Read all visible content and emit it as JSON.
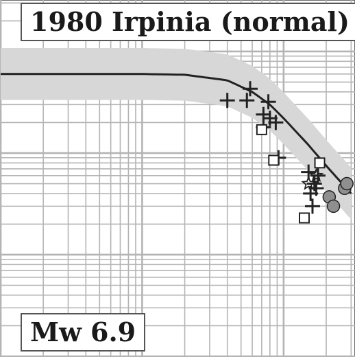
{
  "chart_data": {
    "type": "scatter",
    "title": "1980 Irpinia (normal)",
    "annotation": "Mw 6.9",
    "xscale": "log",
    "yscale": "log",
    "xlim": [
      1,
      316
    ],
    "ylim": [
      0.001,
      3.16
    ],
    "grid": true,
    "tick_labels_shown": false,
    "legend": "none",
    "colors": {
      "grid": "#b4b4b4",
      "band": "#d7d7d7",
      "curve": "#222222",
      "markers": "#222222",
      "circle_fill": "#8f8f8f"
    },
    "model_curve": {
      "x": [
        1,
        5,
        10,
        20,
        40,
        60,
        80,
        100,
        150,
        200,
        300
      ],
      "y": [
        0.6,
        0.6,
        0.6,
        0.59,
        0.52,
        0.4,
        0.3,
        0.22,
        0.12,
        0.075,
        0.04
      ]
    },
    "band_factor": 1.8,
    "series": [
      {
        "marker": "plus",
        "x": [
          40,
          55,
          72,
          58,
          78,
          80,
          72,
          88,
          92,
          150,
          155,
          160,
          165,
          170,
          175
        ],
        "y": [
          0.33,
          0.33,
          0.24,
          0.43,
          0.32,
          0.22,
          0.18,
          0.2,
          0.09,
          0.065,
          0.04,
          0.03,
          0.05,
          0.045,
          0.06
        ]
      },
      {
        "marker": "square",
        "x": [
          70,
          85,
          180,
          140
        ],
        "y": [
          0.17,
          0.085,
          0.08,
          0.023
        ]
      },
      {
        "marker": "star",
        "x": [
          170,
          150
        ],
        "y": [
          0.06,
          0.05
        ]
      },
      {
        "marker": "circle",
        "x": [
          270,
          280,
          210,
          225
        ],
        "y": [
          0.045,
          0.05,
          0.037,
          0.03
        ]
      }
    ]
  }
}
